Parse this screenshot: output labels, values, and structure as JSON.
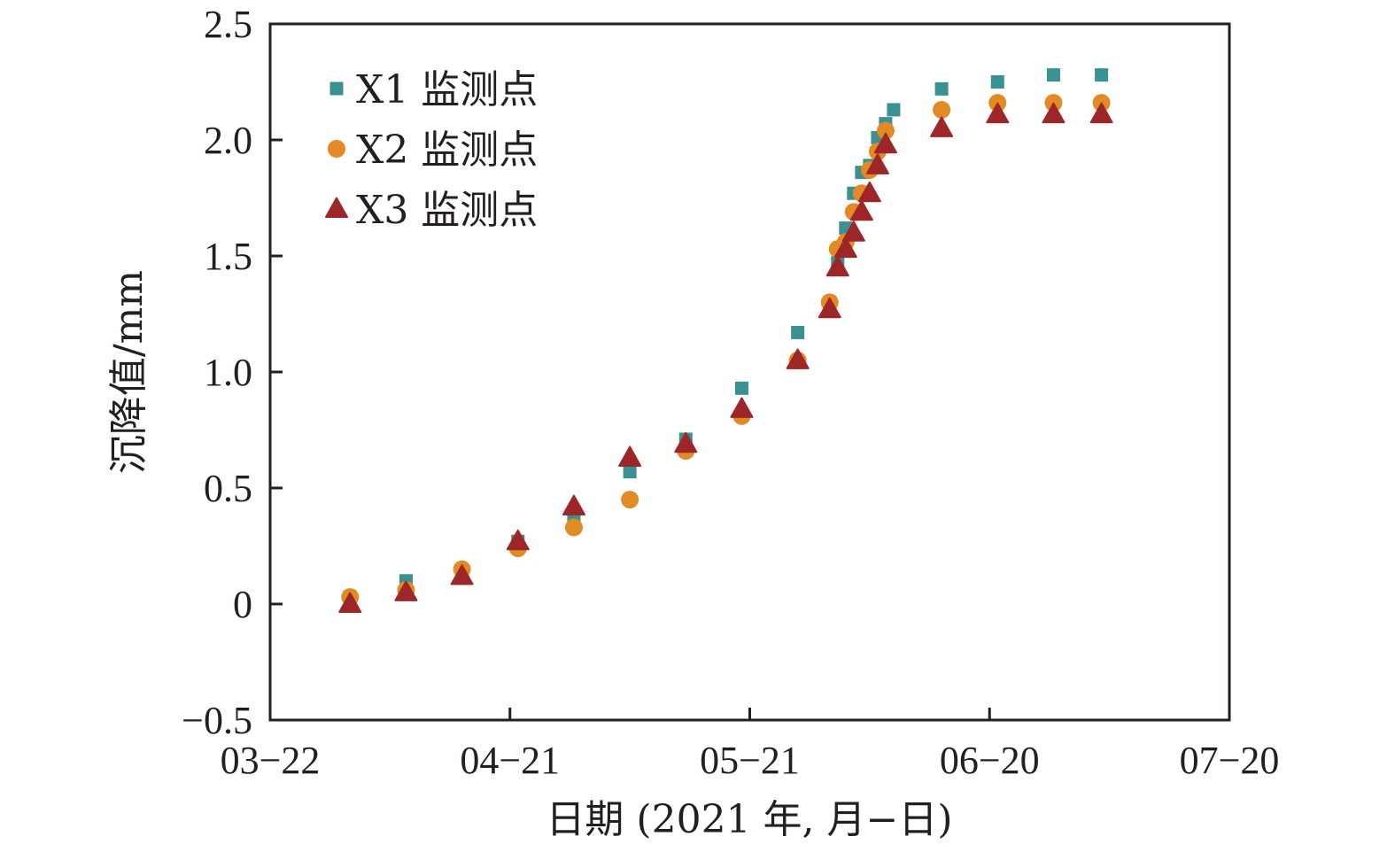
{
  "chart_data": {
    "type": "scatter",
    "title": "",
    "xlabel": "日期 (2021 年, 月−日)",
    "ylabel": "沉降值/mm",
    "x_type": "date",
    "x_year": 2021,
    "xlim": [
      "03-22",
      "07-20"
    ],
    "ylim": [
      -0.5,
      2.5
    ],
    "x_ticks": [
      "03-22",
      "04-21",
      "05-21",
      "06-20",
      "07-20"
    ],
    "x_tick_labels": [
      "03−22",
      "04−21",
      "05−21",
      "06−20",
      "07−20"
    ],
    "y_ticks": [
      -0.5,
      0,
      0.5,
      1.0,
      1.5,
      2.0,
      2.5
    ],
    "y_tick_labels": [
      "−0.5",
      "0",
      "0.5",
      "1.0",
      "1.5",
      "2.0",
      "2.5"
    ],
    "grid": false,
    "legend_position": "top-left",
    "series": [
      {
        "name": "X1 监测点",
        "marker": "square",
        "color": "#3a9192",
        "x": [
          "04-01",
          "04-08",
          "04-15",
          "04-22",
          "04-29",
          "05-06",
          "05-13",
          "05-20",
          "05-27",
          "05-31",
          "06-01",
          "06-02",
          "06-03",
          "06-04",
          "06-05",
          "06-06",
          "06-07",
          "06-08",
          "06-14",
          "06-21",
          "06-28",
          "07-04"
        ],
        "values": [
          0.03,
          0.1,
          0.14,
          0.27,
          0.37,
          0.57,
          0.71,
          0.93,
          1.17,
          1.3,
          1.47,
          1.62,
          1.77,
          1.86,
          1.89,
          2.01,
          2.07,
          2.13,
          2.22,
          2.25,
          2.28,
          2.28
        ]
      },
      {
        "name": "X2 监测点",
        "marker": "circle",
        "color": "#e28a23",
        "x": [
          "04-01",
          "04-08",
          "04-15",
          "04-22",
          "04-29",
          "05-06",
          "05-13",
          "05-20",
          "05-27",
          "05-31",
          "06-01",
          "06-02",
          "06-03",
          "06-04",
          "06-05",
          "06-06",
          "06-07",
          "06-14",
          "06-21",
          "06-28",
          "07-04"
        ],
        "values": [
          0.03,
          0.06,
          0.15,
          0.24,
          0.33,
          0.45,
          0.66,
          0.81,
          1.05,
          1.3,
          1.53,
          1.56,
          1.69,
          1.77,
          1.87,
          1.95,
          2.04,
          2.13,
          2.16,
          2.16,
          2.16
        ]
      },
      {
        "name": "X3 监测点",
        "marker": "triangle",
        "color": "#9c2628",
        "x": [
          "04-01",
          "04-08",
          "04-15",
          "04-22",
          "04-29",
          "05-06",
          "05-13",
          "05-20",
          "05-27",
          "05-31",
          "06-01",
          "06-02",
          "06-03",
          "06-04",
          "06-05",
          "06-06",
          "06-07",
          "06-14",
          "06-21",
          "06-28",
          "07-04"
        ],
        "values": [
          0.0,
          0.05,
          0.12,
          0.27,
          0.42,
          0.63,
          0.69,
          0.84,
          1.05,
          1.27,
          1.45,
          1.53,
          1.6,
          1.69,
          1.77,
          1.89,
          1.98,
          2.05,
          2.11,
          2.11,
          2.11
        ]
      }
    ]
  }
}
